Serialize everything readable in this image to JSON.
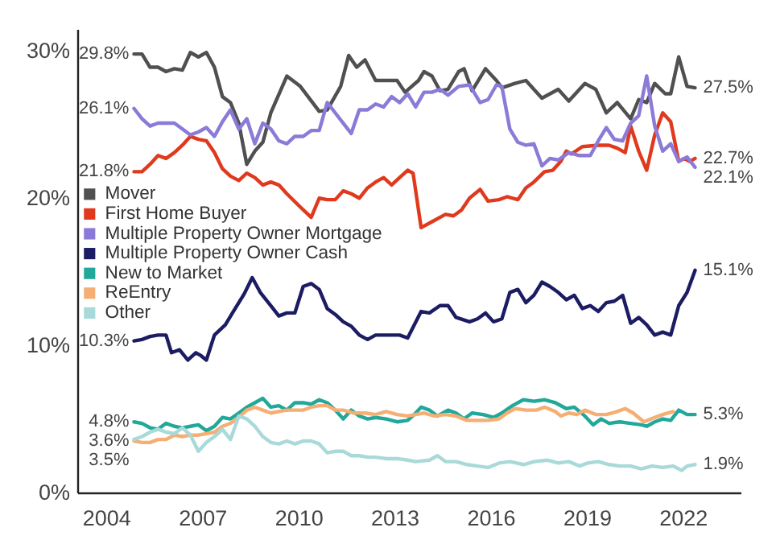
{
  "chart_data": {
    "type": "line",
    "xlim": [
      2003.1,
      2023.8
    ],
    "xticks": [
      2004,
      2007,
      2010,
      2013,
      2016,
      2019,
      2022
    ],
    "ylim": [
      0,
      31.5
    ],
    "yticks": [
      {
        "value": 0,
        "label": "0%"
      },
      {
        "value": 10,
        "label": "10%"
      },
      {
        "value": 20,
        "label": "20%"
      },
      {
        "value": 30,
        "label": "30%"
      }
    ],
    "grid": false,
    "legend": "left",
    "line_style": "solid",
    "series": [
      {
        "name": "Mover",
        "color": "#505050",
        "value_labels": [
          "29.8%",
          null,
          null,
          null,
          null,
          null,
          null,
          null,
          null,
          null,
          null,
          null,
          null,
          null,
          null,
          null,
          null,
          null,
          null,
          null,
          null,
          null,
          null,
          null,
          null,
          null,
          null,
          null,
          null,
          null,
          null,
          null,
          null,
          null,
          null,
          null,
          null,
          null,
          null,
          null,
          null,
          null,
          null,
          null,
          null,
          null,
          null,
          null,
          null,
          null,
          null,
          null,
          null,
          null,
          null,
          null,
          null,
          null,
          "27.5%"
        ],
        "x": [
          2004.87,
          2005.12,
          2005.37,
          2005.62,
          2005.87,
          2006.13,
          2006.38,
          2006.63,
          2006.88,
          2007.13,
          2007.38,
          2007.63,
          2007.88,
          2008.14,
          2008.39,
          2008.64,
          2008.89,
          2009.14,
          2009.64,
          2010.06,
          2010.65,
          2010.9,
          2011.32,
          2011.57,
          2011.82,
          2012.08,
          2012.41,
          2012.74,
          2013.08,
          2013.33,
          2013.75,
          2013.92,
          2014.17,
          2014.42,
          2014.67,
          2015.0,
          2015.17,
          2015.42,
          2015.84,
          2016.18,
          2016.35,
          2016.76,
          2017.1,
          2017.6,
          2018.11,
          2018.44,
          2018.94,
          2019.28,
          2019.61,
          2019.95,
          2020.37,
          2020.62,
          2020.87,
          2021.12,
          2021.45,
          2021.62,
          2021.87,
          2022.13,
          2022.38
        ],
        "values": [
          29.8,
          29.8,
          28.9,
          28.9,
          28.6,
          28.8,
          28.7,
          29.9,
          29.6,
          29.9,
          28.9,
          26.9,
          26.5,
          25.1,
          22.3,
          23.2,
          23.8,
          25.8,
          28.3,
          27.6,
          25.9,
          26.0,
          27.6,
          29.7,
          28.9,
          29.4,
          28.0,
          28.0,
          28.0,
          27.2,
          28.0,
          28.6,
          28.3,
          27.3,
          27.4,
          28.6,
          28.8,
          27.3,
          28.8,
          28.0,
          27.5,
          27.8,
          28.0,
          26.8,
          27.4,
          26.6,
          27.8,
          27.4,
          25.8,
          26.5,
          25.4,
          26.7,
          26.5,
          27.8,
          27.1,
          27.1,
          29.6,
          27.6,
          27.5
        ]
      },
      {
        "name": "First Home Buyer",
        "color": "#e03a1e",
        "value_labels": [
          "21.8%",
          null,
          null,
          null,
          null,
          null,
          null,
          null,
          null,
          null,
          null,
          null,
          null,
          null,
          null,
          null,
          null,
          null,
          null,
          null,
          null,
          null,
          null,
          null,
          null,
          null,
          null,
          null,
          null,
          null,
          null,
          null,
          null,
          null,
          null,
          null,
          null,
          null,
          null,
          null,
          null,
          null,
          null,
          null,
          null,
          null,
          null,
          null,
          null,
          null,
          null,
          null,
          null,
          null,
          null,
          null,
          null,
          null,
          null,
          null,
          null,
          null,
          null,
          null,
          null,
          null,
          null,
          "22.7%"
        ],
        "x": [
          2004.87,
          2005.12,
          2005.37,
          2005.62,
          2005.87,
          2006.13,
          2006.38,
          2006.63,
          2006.88,
          2007.13,
          2007.38,
          2007.63,
          2007.88,
          2008.14,
          2008.39,
          2008.64,
          2008.89,
          2009.14,
          2009.39,
          2009.64,
          2010.06,
          2010.4,
          2010.65,
          2010.9,
          2011.15,
          2011.4,
          2011.65,
          2011.9,
          2012.16,
          2012.41,
          2012.66,
          2012.91,
          2013.16,
          2013.41,
          2013.58,
          2013.83,
          2014.17,
          2014.59,
          2014.84,
          2015.09,
          2015.34,
          2015.67,
          2015.92,
          2016.26,
          2016.51,
          2016.85,
          2017.1,
          2017.35,
          2017.68,
          2017.94,
          2018.19,
          2018.36,
          2018.52,
          2018.86,
          2019.36,
          2019.69,
          2019.95,
          2020.2,
          2020.37,
          2020.62,
          2020.87,
          2021.12,
          2021.37,
          2021.62,
          2021.87,
          2022.04,
          2022.21,
          2022.38
        ],
        "values": [
          21.8,
          21.8,
          22.3,
          22.9,
          22.7,
          23.1,
          23.6,
          24.2,
          24.0,
          23.9,
          23.1,
          22.0,
          21.5,
          21.2,
          21.7,
          21.4,
          20.9,
          21.1,
          20.9,
          20.3,
          19.4,
          18.7,
          20.0,
          19.9,
          19.9,
          20.5,
          20.3,
          20.0,
          20.7,
          21.1,
          21.4,
          20.9,
          21.4,
          21.9,
          21.7,
          18.0,
          18.4,
          18.9,
          18.8,
          19.2,
          20.0,
          20.6,
          19.8,
          19.9,
          20.1,
          19.9,
          20.7,
          21.1,
          21.8,
          21.9,
          22.5,
          23.2,
          23.0,
          23.5,
          23.6,
          23.6,
          23.4,
          23.1,
          24.9,
          23.2,
          21.9,
          24.3,
          25.8,
          25.2,
          22.5,
          22.7,
          22.5,
          22.7
        ]
      },
      {
        "name": "Multiple Property Owner Mortgage",
        "color": "#8c7ad8",
        "value_labels": [
          "26.1%",
          null,
          null,
          null,
          null,
          null,
          null,
          null,
          null,
          null,
          null,
          null,
          null,
          null,
          null,
          null,
          null,
          null,
          null,
          null,
          null,
          null,
          null,
          null,
          null,
          null,
          null,
          null,
          null,
          null,
          null,
          null,
          null,
          null,
          null,
          null,
          null,
          null,
          null,
          null,
          null,
          null,
          null,
          null,
          null,
          null,
          null,
          null,
          null,
          null,
          null,
          null,
          null,
          null,
          null,
          null,
          null,
          null,
          null,
          null,
          null,
          null,
          null,
          null,
          null,
          null,
          null,
          "22.1%"
        ],
        "x": [
          2004.87,
          2005.12,
          2005.37,
          2005.62,
          2006.13,
          2006.38,
          2006.63,
          2006.88,
          2007.13,
          2007.38,
          2007.63,
          2007.88,
          2008.14,
          2008.39,
          2008.64,
          2008.89,
          2009.14,
          2009.39,
          2009.64,
          2009.89,
          2010.15,
          2010.4,
          2010.65,
          2010.9,
          2011.15,
          2011.4,
          2011.65,
          2011.9,
          2012.16,
          2012.41,
          2012.66,
          2012.91,
          2013.16,
          2013.41,
          2013.66,
          2013.92,
          2014.17,
          2014.42,
          2014.67,
          2015.0,
          2015.34,
          2015.67,
          2015.92,
          2016.18,
          2016.35,
          2016.6,
          2016.85,
          2017.1,
          2017.35,
          2017.6,
          2017.85,
          2018.11,
          2018.44,
          2018.77,
          2019.11,
          2019.36,
          2019.61,
          2019.86,
          2020.12,
          2020.37,
          2020.62,
          2020.87,
          2021.12,
          2021.37,
          2021.62,
          2021.87,
          2022.13,
          2022.38
        ],
        "values": [
          26.1,
          25.4,
          24.9,
          25.1,
          25.1,
          24.7,
          24.3,
          24.5,
          24.8,
          24.2,
          25.2,
          26.0,
          24.7,
          25.4,
          23.7,
          25.1,
          24.7,
          23.9,
          23.7,
          24.2,
          24.2,
          24.6,
          24.6,
          26.5,
          25.8,
          25.1,
          24.4,
          26.0,
          26.0,
          26.4,
          26.2,
          26.9,
          26.5,
          27.1,
          26.2,
          27.2,
          27.2,
          27.4,
          27.0,
          27.6,
          27.7,
          26.5,
          26.7,
          27.7,
          27.6,
          24.7,
          23.8,
          23.6,
          23.7,
          22.2,
          22.7,
          22.6,
          23.1,
          22.9,
          22.9,
          23.9,
          24.8,
          24.0,
          23.9,
          25.1,
          25.6,
          28.3,
          24.9,
          23.2,
          23.7,
          22.5,
          22.8,
          22.1
        ]
      },
      {
        "name": "Multiple Property Owner Cash",
        "color": "#1c1c63",
        "value_labels": [
          "10.3%",
          null,
          null,
          null,
          null,
          null,
          null,
          null,
          null,
          null,
          null,
          null,
          null,
          null,
          null,
          null,
          null,
          null,
          null,
          null,
          null,
          null,
          null,
          null,
          null,
          null,
          null,
          null,
          null,
          null,
          null,
          null,
          null,
          null,
          null,
          null,
          null,
          null,
          null,
          null,
          null,
          null,
          null,
          null,
          null,
          null,
          null,
          null,
          null,
          null,
          null,
          null,
          null,
          null,
          null,
          null,
          null,
          null,
          null,
          null,
          null,
          null,
          null,
          null,
          null,
          null,
          null,
          null,
          "15.1%"
        ],
        "x": [
          2004.87,
          2005.12,
          2005.37,
          2005.62,
          2005.87,
          2006.04,
          2006.29,
          2006.55,
          2006.8,
          2006.96,
          2007.13,
          2007.38,
          2007.72,
          2007.97,
          2008.31,
          2008.56,
          2008.81,
          2009.14,
          2009.39,
          2009.64,
          2009.89,
          2010.15,
          2010.4,
          2010.65,
          2010.9,
          2011.15,
          2011.4,
          2011.65,
          2011.9,
          2012.16,
          2012.41,
          2012.66,
          2012.91,
          2013.16,
          2013.41,
          2013.83,
          2014.09,
          2014.42,
          2014.67,
          2014.92,
          2015.34,
          2015.59,
          2015.84,
          2016.09,
          2016.35,
          2016.6,
          2016.85,
          2017.1,
          2017.35,
          2017.6,
          2017.85,
          2018.11,
          2018.36,
          2018.61,
          2018.86,
          2019.11,
          2019.36,
          2019.61,
          2019.86,
          2020.12,
          2020.37,
          2020.62,
          2020.87,
          2021.12,
          2021.37,
          2021.62,
          2021.87,
          2022.13,
          2022.38
        ],
        "values": [
          10.3,
          10.4,
          10.6,
          10.7,
          10.7,
          9.5,
          9.7,
          9.0,
          9.5,
          9.3,
          9.0,
          10.7,
          11.4,
          12.3,
          13.5,
          14.6,
          13.6,
          12.7,
          12.0,
          12.2,
          12.2,
          14.0,
          14.2,
          13.8,
          12.5,
          12.1,
          11.6,
          11.3,
          10.7,
          10.4,
          10.7,
          10.7,
          10.7,
          10.7,
          10.5,
          12.3,
          12.2,
          12.7,
          12.7,
          11.9,
          11.6,
          11.8,
          12.2,
          11.6,
          11.8,
          13.6,
          13.8,
          12.9,
          13.4,
          14.3,
          14.0,
          13.6,
          13.1,
          13.4,
          12.5,
          12.7,
          12.3,
          12.9,
          13.0,
          13.4,
          11.5,
          11.9,
          11.4,
          10.7,
          10.9,
          10.7,
          12.7,
          13.6,
          15.1
        ]
      },
      {
        "name": "New to Market",
        "color": "#21a89a",
        "value_labels": [
          "4.8%",
          null,
          null,
          null,
          null,
          null,
          null,
          null,
          null,
          null,
          null,
          null,
          null,
          null,
          null,
          null,
          null,
          null,
          null,
          null,
          null,
          null,
          null,
          null,
          null,
          null,
          null,
          null,
          null,
          null,
          null,
          null,
          null,
          null,
          null,
          null,
          null,
          null,
          null,
          null,
          null,
          null,
          null,
          null,
          null,
          null,
          null,
          null,
          null,
          null,
          null,
          null,
          null,
          null,
          null,
          null,
          null,
          null,
          null,
          null,
          null,
          null,
          null,
          null,
          null,
          "5.3%"
        ],
        "x": [
          2004.87,
          2005.12,
          2005.37,
          2005.62,
          2005.87,
          2006.13,
          2006.38,
          2006.63,
          2006.88,
          2007.13,
          2007.38,
          2007.63,
          2007.88,
          2008.14,
          2008.39,
          2008.64,
          2008.89,
          2009.14,
          2009.39,
          2009.64,
          2009.89,
          2010.15,
          2010.4,
          2010.65,
          2010.9,
          2011.15,
          2011.4,
          2011.65,
          2011.9,
          2012.16,
          2012.41,
          2012.74,
          2013.08,
          2013.41,
          2013.66,
          2013.83,
          2014.09,
          2014.34,
          2014.67,
          2014.92,
          2015.17,
          2015.42,
          2015.76,
          2016.09,
          2016.35,
          2016.68,
          2017.02,
          2017.35,
          2017.69,
          2018.02,
          2018.36,
          2018.61,
          2018.94,
          2019.2,
          2019.45,
          2019.7,
          2020.03,
          2020.37,
          2020.7,
          2020.87,
          2021.12,
          2021.37,
          2021.62,
          2021.87,
          2022.13,
          2022.38
        ],
        "values": [
          4.8,
          4.7,
          4.4,
          4.3,
          4.7,
          4.5,
          4.4,
          4.5,
          4.6,
          4.2,
          4.5,
          5.1,
          5.0,
          5.4,
          5.8,
          6.1,
          6.4,
          5.8,
          5.9,
          5.6,
          6.1,
          6.1,
          6.0,
          6.3,
          6.1,
          5.6,
          5.0,
          5.6,
          5.2,
          5.0,
          5.1,
          5.0,
          4.8,
          4.9,
          5.4,
          5.8,
          5.6,
          5.2,
          5.6,
          5.4,
          5.0,
          5.4,
          5.3,
          5.1,
          5.4,
          5.9,
          6.3,
          6.2,
          6.3,
          6.1,
          5.7,
          5.8,
          5.2,
          4.6,
          5.0,
          4.7,
          4.8,
          4.7,
          4.6,
          4.5,
          4.8,
          5.0,
          4.9,
          5.6,
          5.3,
          5.3
        ]
      },
      {
        "name": "ReEntry",
        "color": "#f5ae73",
        "value_labels": [
          "3.5%",
          null,
          null,
          null,
          null,
          null,
          null,
          null,
          null,
          null,
          null,
          null,
          null,
          null,
          null,
          null,
          null,
          null,
          null,
          null,
          null,
          null,
          null,
          null,
          null,
          null,
          null,
          null,
          null,
          null,
          null,
          null,
          null,
          null,
          null,
          null,
          null,
          null,
          null,
          null,
          null,
          null,
          null,
          null,
          null,
          null,
          null,
          null,
          null,
          null,
          null,
          null,
          null,
          null,
          null,
          null,
          null,
          null,
          null,
          null
        ],
        "x": [
          2004.87,
          2005.12,
          2005.37,
          2005.62,
          2005.87,
          2006.13,
          2006.38,
          2006.63,
          2006.88,
          2007.13,
          2007.38,
          2007.63,
          2007.88,
          2008.14,
          2008.39,
          2008.64,
          2008.89,
          2009.14,
          2009.39,
          2009.64,
          2009.89,
          2010.15,
          2010.4,
          2010.65,
          2010.9,
          2011.15,
          2011.4,
          2011.74,
          2012.08,
          2012.41,
          2012.74,
          2013.08,
          2013.41,
          2013.92,
          2014.25,
          2014.59,
          2014.92,
          2015.26,
          2015.59,
          2015.92,
          2016.26,
          2016.51,
          2016.76,
          2017.1,
          2017.43,
          2017.69,
          2018.02,
          2018.19,
          2018.44,
          2018.69,
          2018.94,
          2019.28,
          2019.61,
          2019.95,
          2020.2,
          2020.45,
          2020.78,
          2021.12,
          2021.37,
          2021.7
        ],
        "values": [
          3.5,
          3.4,
          3.4,
          3.6,
          3.6,
          3.9,
          3.8,
          3.9,
          3.9,
          4.0,
          4.1,
          4.5,
          4.7,
          5.1,
          5.6,
          5.8,
          5.6,
          5.4,
          5.5,
          5.6,
          5.6,
          5.6,
          5.8,
          5.9,
          5.9,
          5.6,
          5.6,
          5.4,
          5.4,
          5.3,
          5.5,
          5.3,
          5.2,
          5.4,
          5.2,
          5.3,
          5.2,
          4.9,
          4.9,
          4.9,
          5.0,
          5.4,
          5.7,
          5.6,
          5.6,
          5.8,
          5.5,
          5.2,
          5.4,
          5.3,
          5.6,
          5.3,
          5.3,
          5.5,
          5.7,
          5.4,
          4.8,
          5.1,
          5.3,
          5.5
        ]
      },
      {
        "name": "Other",
        "color": "#a9d9d9",
        "value_labels": [
          "3.6%",
          null,
          null,
          null,
          null,
          null,
          null,
          null,
          null,
          null,
          null,
          null,
          null,
          null,
          null,
          null,
          null,
          null,
          null,
          null,
          null,
          null,
          null,
          null,
          null,
          null,
          null,
          null,
          null,
          null,
          null,
          null,
          null,
          null,
          null,
          null,
          null,
          null,
          null,
          null,
          null,
          null,
          null,
          null,
          null,
          null,
          null,
          null,
          null,
          null,
          null,
          null,
          null,
          null,
          null,
          null,
          null,
          null,
          null,
          null,
          null,
          "1.9%"
        ],
        "x": [
          2004.87,
          2005.12,
          2005.37,
          2005.62,
          2005.87,
          2006.13,
          2006.38,
          2006.63,
          2006.88,
          2007.13,
          2007.38,
          2007.63,
          2007.88,
          2008.14,
          2008.39,
          2008.64,
          2008.89,
          2009.14,
          2009.39,
          2009.64,
          2009.89,
          2010.15,
          2010.4,
          2010.65,
          2010.9,
          2011.15,
          2011.4,
          2011.65,
          2011.9,
          2012.16,
          2012.41,
          2012.74,
          2013.08,
          2013.41,
          2013.66,
          2014.09,
          2014.34,
          2014.59,
          2014.92,
          2015.26,
          2015.59,
          2015.92,
          2016.26,
          2016.6,
          2017.03,
          2017.36,
          2017.78,
          2018.11,
          2018.44,
          2018.77,
          2019.03,
          2019.36,
          2019.7,
          2020.03,
          2020.37,
          2020.7,
          2021.04,
          2021.37,
          2021.7,
          2021.96,
          2022.13,
          2022.38
        ],
        "values": [
          3.6,
          3.8,
          4.1,
          4.3,
          4.1,
          4.0,
          4.4,
          3.9,
          2.8,
          3.4,
          3.8,
          4.3,
          3.6,
          5.2,
          5.0,
          4.5,
          3.8,
          3.4,
          3.3,
          3.5,
          3.3,
          3.5,
          3.5,
          3.3,
          2.7,
          2.8,
          2.8,
          2.5,
          2.5,
          2.4,
          2.4,
          2.3,
          2.3,
          2.2,
          2.1,
          2.2,
          2.5,
          2.1,
          2.1,
          1.9,
          1.8,
          1.7,
          2.0,
          2.1,
          1.9,
          2.1,
          2.2,
          2.0,
          2.1,
          1.8,
          2.0,
          2.1,
          1.9,
          1.8,
          1.8,
          1.6,
          1.8,
          1.7,
          1.8,
          1.5,
          1.8,
          1.9
        ]
      }
    ]
  }
}
